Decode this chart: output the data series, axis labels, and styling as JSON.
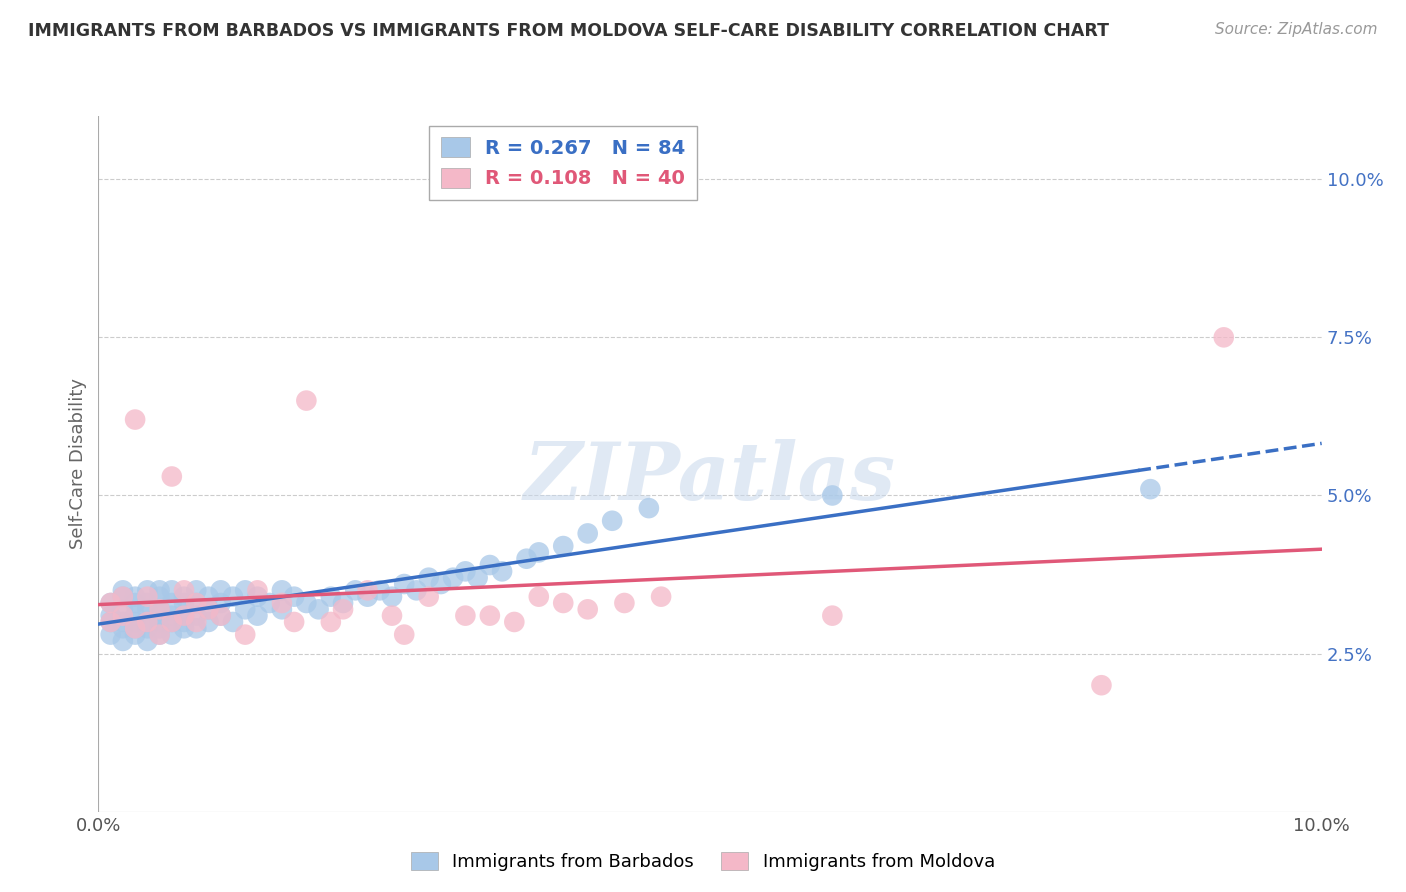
{
  "title": "IMMIGRANTS FROM BARBADOS VS IMMIGRANTS FROM MOLDOVA SELF-CARE DISABILITY CORRELATION CHART",
  "source": "Source: ZipAtlas.com",
  "ylabel": "Self-Care Disability",
  "xlim": [
    0.0,
    0.1
  ],
  "ylim": [
    0.0,
    0.11
  ],
  "yticks": [
    0.025,
    0.05,
    0.075,
    0.1
  ],
  "ytick_labels": [
    "2.5%",
    "5.0%",
    "7.5%",
    "10.0%"
  ],
  "xtick_left": "0.0%",
  "xtick_right": "10.0%",
  "barbados_color": "#a8c8e8",
  "moldova_color": "#f4b8c8",
  "barbados_R": 0.267,
  "barbados_N": 84,
  "moldova_R": 0.108,
  "moldova_N": 40,
  "barbados_line_color": "#3a6fc4",
  "moldova_line_color": "#e05878",
  "watermark": "ZIPatlas",
  "barbados_x": [
    0.001,
    0.001,
    0.001,
    0.001,
    0.002,
    0.002,
    0.002,
    0.002,
    0.002,
    0.002,
    0.003,
    0.003,
    0.003,
    0.003,
    0.003,
    0.003,
    0.004,
    0.004,
    0.004,
    0.004,
    0.004,
    0.004,
    0.005,
    0.005,
    0.005,
    0.005,
    0.005,
    0.005,
    0.005,
    0.006,
    0.006,
    0.006,
    0.006,
    0.006,
    0.007,
    0.007,
    0.007,
    0.007,
    0.007,
    0.008,
    0.008,
    0.008,
    0.008,
    0.009,
    0.009,
    0.009,
    0.01,
    0.01,
    0.01,
    0.011,
    0.011,
    0.012,
    0.012,
    0.013,
    0.013,
    0.014,
    0.015,
    0.015,
    0.016,
    0.017,
    0.018,
    0.019,
    0.02,
    0.021,
    0.022,
    0.023,
    0.024,
    0.025,
    0.026,
    0.027,
    0.028,
    0.029,
    0.03,
    0.031,
    0.032,
    0.033,
    0.035,
    0.036,
    0.038,
    0.04,
    0.042,
    0.045,
    0.086,
    0.06
  ],
  "barbados_y": [
    0.03,
    0.031,
    0.028,
    0.033,
    0.029,
    0.032,
    0.03,
    0.034,
    0.027,
    0.035,
    0.028,
    0.031,
    0.03,
    0.033,
    0.029,
    0.034,
    0.027,
    0.03,
    0.032,
    0.035,
    0.029,
    0.033,
    0.028,
    0.031,
    0.03,
    0.034,
    0.032,
    0.035,
    0.029,
    0.031,
    0.03,
    0.033,
    0.035,
    0.028,
    0.03,
    0.033,
    0.031,
    0.034,
    0.029,
    0.031,
    0.033,
    0.035,
    0.029,
    0.03,
    0.032,
    0.034,
    0.031,
    0.033,
    0.035,
    0.03,
    0.034,
    0.032,
    0.035,
    0.031,
    0.034,
    0.033,
    0.032,
    0.035,
    0.034,
    0.033,
    0.032,
    0.034,
    0.033,
    0.035,
    0.034,
    0.035,
    0.034,
    0.036,
    0.035,
    0.037,
    0.036,
    0.037,
    0.038,
    0.037,
    0.039,
    0.038,
    0.04,
    0.041,
    0.042,
    0.044,
    0.046,
    0.048,
    0.051,
    0.05
  ],
  "moldova_x": [
    0.001,
    0.001,
    0.002,
    0.002,
    0.003,
    0.003,
    0.004,
    0.004,
    0.005,
    0.005,
    0.006,
    0.006,
    0.007,
    0.007,
    0.008,
    0.008,
    0.009,
    0.01,
    0.012,
    0.013,
    0.015,
    0.016,
    0.017,
    0.019,
    0.02,
    0.022,
    0.024,
    0.025,
    0.027,
    0.03,
    0.032,
    0.034,
    0.036,
    0.038,
    0.04,
    0.043,
    0.046,
    0.06,
    0.082,
    0.092
  ],
  "moldova_y": [
    0.03,
    0.033,
    0.031,
    0.034,
    0.029,
    0.062,
    0.03,
    0.034,
    0.028,
    0.032,
    0.03,
    0.053,
    0.031,
    0.035,
    0.03,
    0.033,
    0.032,
    0.031,
    0.028,
    0.035,
    0.033,
    0.03,
    0.065,
    0.03,
    0.032,
    0.035,
    0.031,
    0.028,
    0.034,
    0.031,
    0.031,
    0.03,
    0.034,
    0.033,
    0.032,
    0.033,
    0.034,
    0.031,
    0.02,
    0.075
  ]
}
